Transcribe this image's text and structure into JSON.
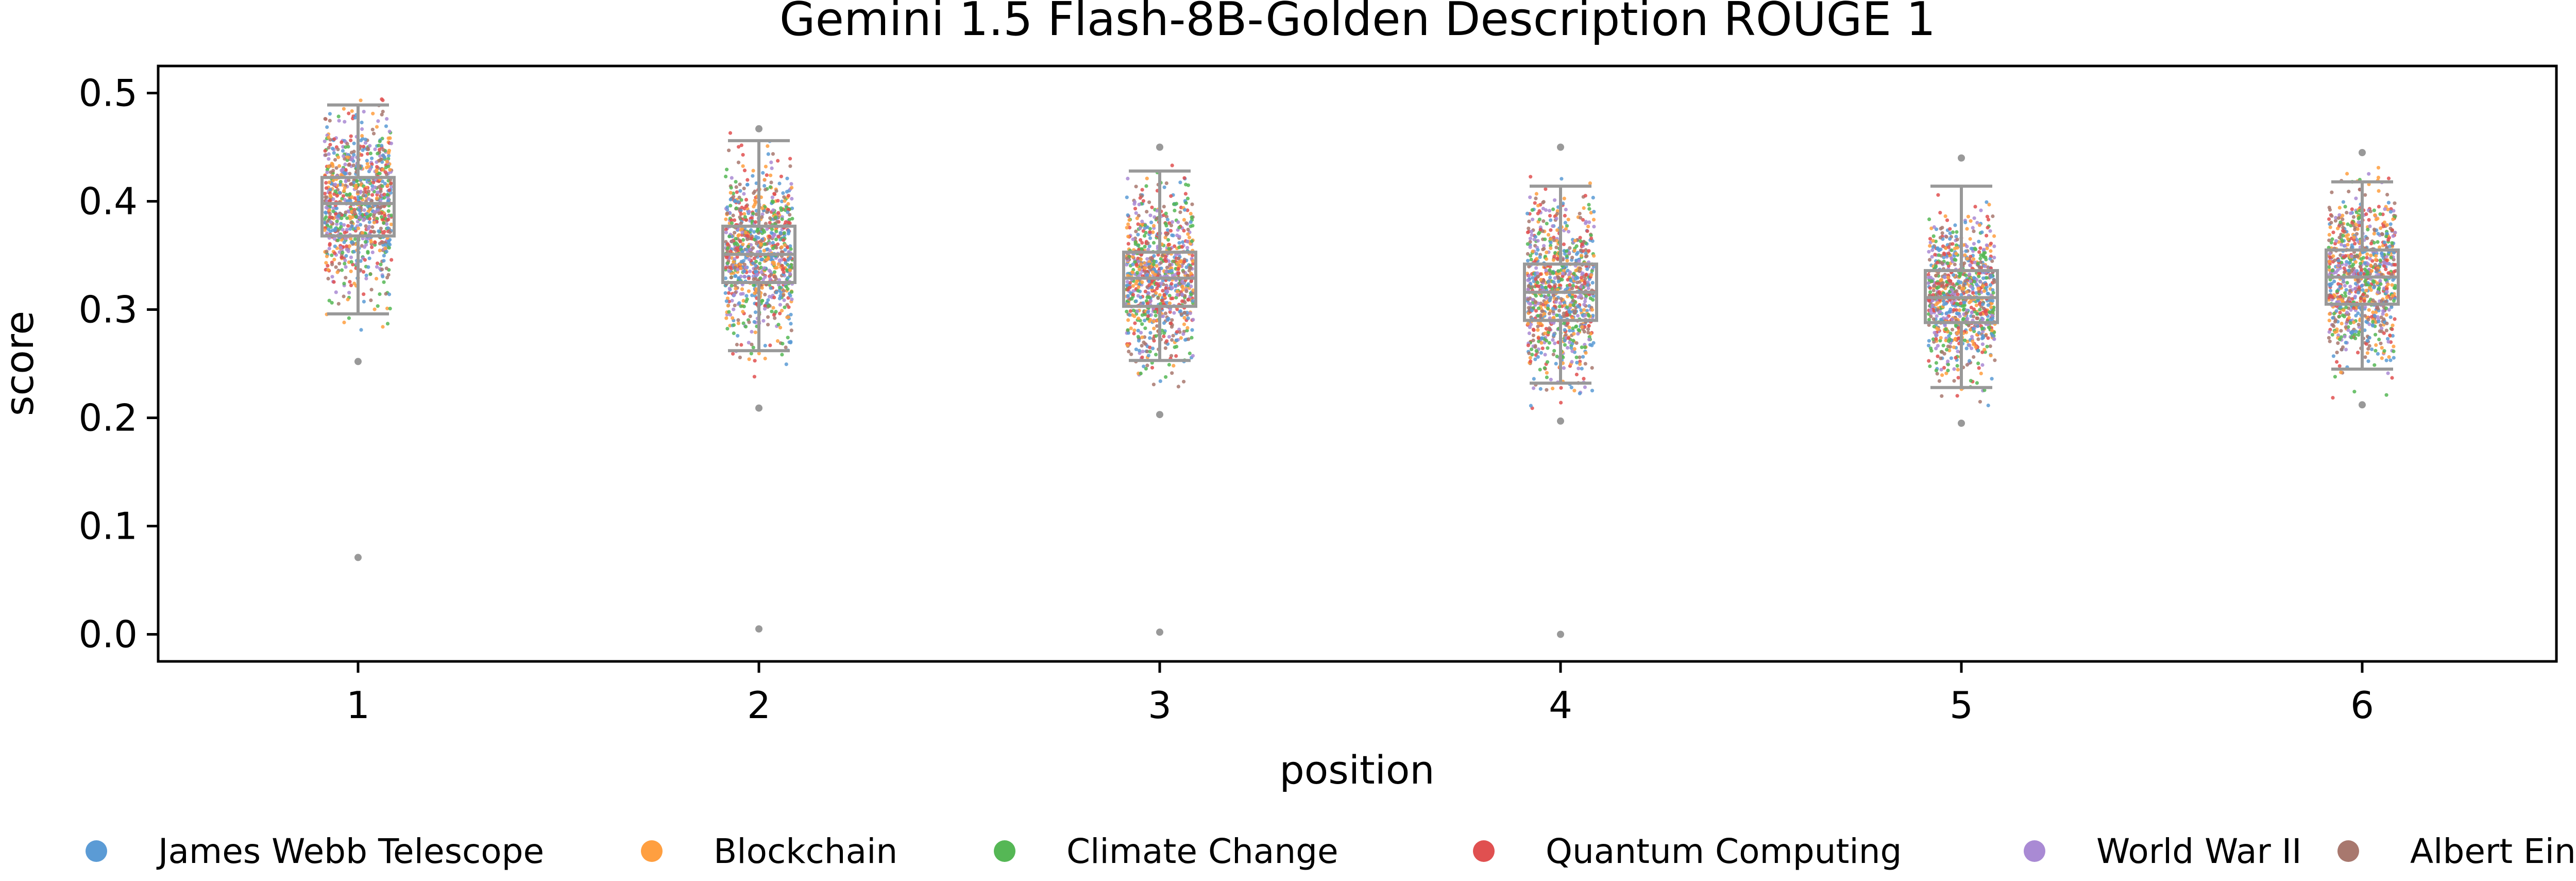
{
  "chart_data": {
    "type": "box+strip",
    "title": "Gemini 1.5 Flash-8B-Golden Description ROUGE 1",
    "xlabel": "position",
    "ylabel": "score",
    "categories": [
      "1",
      "2",
      "3",
      "4",
      "5",
      "6"
    ],
    "ylim": [
      -0.025,
      0.525
    ],
    "yticks": [
      "0.0",
      "0.1",
      "0.2",
      "0.3",
      "0.4",
      "0.5"
    ],
    "grid": false,
    "legend_placement": "bottom",
    "box_color": "#999999",
    "boxes": [
      {
        "position": "1",
        "q1": 0.368,
        "median": 0.398,
        "q3": 0.422,
        "whisker_low": 0.296,
        "whisker_high": 0.489,
        "outliers": [
          0.252,
          0.071
        ]
      },
      {
        "position": "2",
        "q1": 0.325,
        "median": 0.351,
        "q3": 0.377,
        "whisker_low": 0.262,
        "whisker_high": 0.456,
        "outliers": [
          0.467,
          0.209,
          0.005
        ]
      },
      {
        "position": "3",
        "q1": 0.303,
        "median": 0.329,
        "q3": 0.353,
        "whisker_low": 0.253,
        "whisker_high": 0.428,
        "outliers": [
          0.45,
          0.203,
          0.002
        ]
      },
      {
        "position": "4",
        "q1": 0.29,
        "median": 0.316,
        "q3": 0.342,
        "whisker_low": 0.232,
        "whisker_high": 0.414,
        "outliers": [
          0.45,
          0.197,
          0.0
        ]
      },
      {
        "position": "5",
        "q1": 0.288,
        "median": 0.311,
        "q3": 0.336,
        "whisker_low": 0.228,
        "whisker_high": 0.414,
        "outliers": [
          0.44,
          0.195
        ]
      },
      {
        "position": "6",
        "q1": 0.305,
        "median": 0.33,
        "q3": 0.355,
        "whisker_low": 0.245,
        "whisker_high": 0.418,
        "outliers": [
          0.445,
          0.212
        ]
      }
    ],
    "series": [
      {
        "name": "James Webb Telescope",
        "color": "#5b9bd5"
      },
      {
        "name": "Blockchain",
        "color": "#ff9f40"
      },
      {
        "name": "Climate Change",
        "color": "#55b755"
      },
      {
        "name": "Quantum Computing",
        "color": "#e05050"
      },
      {
        "name": "World War II",
        "color": "#a98ad4"
      },
      {
        "name": "Albert Einstein",
        "color": "#a8786e"
      }
    ]
  }
}
